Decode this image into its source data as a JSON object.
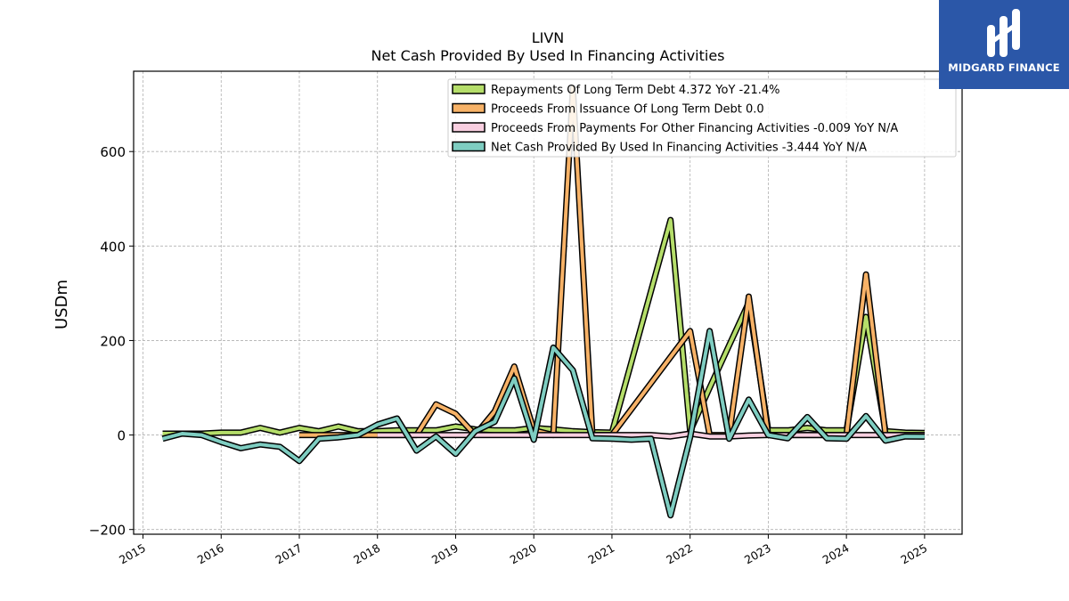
{
  "chart_data": {
    "type": "line",
    "title": "LIVN",
    "subtitle": "Net Cash Provided By Used In Financing Activities",
    "ylabel": "USDm",
    "xlabel": "",
    "ylim": [
      -210,
      770
    ],
    "xlim": [
      2014.88,
      2025.48
    ],
    "yticks": [
      -200,
      0,
      200,
      400,
      600
    ],
    "yticklabels": [
      "−200",
      "0",
      "200",
      "400",
      "600"
    ],
    "xticks": [
      2015,
      2016,
      2017,
      2018,
      2019,
      2020,
      2021,
      2022,
      2023,
      2024,
      2025
    ],
    "xticklabels": [
      "2015",
      "2016",
      "2017",
      "2018",
      "2019",
      "2020",
      "2021",
      "2022",
      "2023",
      "2024",
      "2025"
    ],
    "grid": true,
    "legend_position": "top-right",
    "series": [
      {
        "name": "Repayments Of Long Term Debt  4.372 YoY -21.4%",
        "color": "#b5de6a",
        "x": [
          2015.25,
          2015.5,
          2015.75,
          2016.0,
          2016.25,
          2016.5,
          2016.75,
          2017.0,
          2017.25,
          2017.5,
          2017.75,
          2018.0,
          2018.25,
          2018.5,
          2018.75,
          2019.0,
          2019.25,
          2019.5,
          2019.75,
          2020.0,
          2020.25,
          2020.5,
          2020.75,
          2021.0,
          2021.25,
          2021.5,
          2021.75,
          2022.0,
          2022.25,
          2022.5,
          2022.75,
          2023.0,
          2023.25,
          2023.5,
          2023.75,
          2024.0,
          2024.25,
          2024.5,
          2024.75,
          2025.0
        ],
        "y": [
          3,
          3,
          3,
          5,
          5,
          15,
          5,
          15,
          8,
          18,
          8,
          8,
          10,
          10,
          10,
          18,
          12,
          10,
          10,
          15,
          12,
          8,
          6,
          5,
          155,
          305,
          455,
          8,
          100,
          190,
          280,
          10,
          10,
          15,
          10,
          10,
          250,
          8,
          5,
          4.4
        ]
      },
      {
        "name": "Proceeds From Issuance Of Long Term Debt  0.0",
        "color": "#f7b267",
        "x": [
          2017.0,
          2017.25,
          2017.5,
          2017.75,
          2018.0,
          2018.25,
          2018.5,
          2018.75,
          2019.0,
          2019.25,
          2019.5,
          2019.75,
          2020.0,
          2020.25,
          2020.5,
          2020.75,
          2021.0,
          2021.25,
          2021.5,
          2021.75,
          2022.0,
          2022.25,
          2022.5,
          2022.75,
          2023.0,
          2023.25,
          2023.5,
          2023.75,
          2024.0,
          2024.25,
          2024.5,
          2024.75,
          2025.0
        ],
        "y": [
          0,
          0,
          0,
          0,
          0,
          0,
          0,
          65,
          45,
          0,
          50,
          145,
          10,
          0,
          735,
          0,
          0,
          55,
          110,
          165,
          220,
          0,
          0,
          293,
          0,
          0,
          0,
          0,
          0,
          340,
          0,
          0,
          0
        ]
      },
      {
        "name": "Proceeds From Payments For Other Financing Activities  -0.009 YoY N/A",
        "color": "#f9cfe0",
        "x": [
          2018.0,
          2018.25,
          2018.5,
          2018.75,
          2019.0,
          2019.25,
          2019.5,
          2019.75,
          2020.0,
          2020.25,
          2020.5,
          2020.75,
          2021.0,
          2021.25,
          2021.5,
          2021.75,
          2022.0,
          2022.25,
          2022.5,
          2022.75,
          2023.0,
          2023.25,
          2023.5,
          2023.75,
          2024.0,
          2024.25,
          2024.5,
          2024.75,
          2025.0
        ],
        "y": [
          0,
          0,
          0,
          0,
          0,
          0,
          0,
          0,
          0,
          0,
          0,
          0,
          0,
          0,
          0,
          -3,
          3,
          -3,
          -3,
          -1,
          0,
          0,
          0,
          0,
          0,
          0,
          0,
          0,
          0
        ]
      },
      {
        "name": "Net Cash Provided By Used In Financing Activities  -3.444 YoY N/A",
        "color": "#7ecdc1",
        "x": [
          2015.25,
          2015.5,
          2015.75,
          2016.0,
          2016.25,
          2016.5,
          2016.75,
          2017.0,
          2017.25,
          2017.5,
          2017.75,
          2018.0,
          2018.25,
          2018.5,
          2018.75,
          2019.0,
          2019.25,
          2019.5,
          2019.75,
          2020.0,
          2020.25,
          2020.5,
          2020.75,
          2021.0,
          2021.25,
          2021.5,
          2021.75,
          2022.0,
          2022.25,
          2022.5,
          2022.75,
          2023.0,
          2023.25,
          2023.5,
          2023.75,
          2024.0,
          2024.25,
          2024.5,
          2024.75,
          2025.0
        ],
        "y": [
          -8,
          3,
          0,
          -15,
          -28,
          -20,
          -25,
          -55,
          -8,
          -5,
          0,
          22,
          35,
          -33,
          -3,
          -40,
          8,
          28,
          120,
          -10,
          185,
          137,
          -7,
          -8,
          -10,
          -8,
          -170,
          -5,
          220,
          -8,
          75,
          0,
          -7,
          38,
          -7,
          -8,
          40,
          -12,
          -3,
          -3.4
        ]
      }
    ]
  },
  "branding": {
    "logo_text": "MIDGARD FINANCE"
  }
}
